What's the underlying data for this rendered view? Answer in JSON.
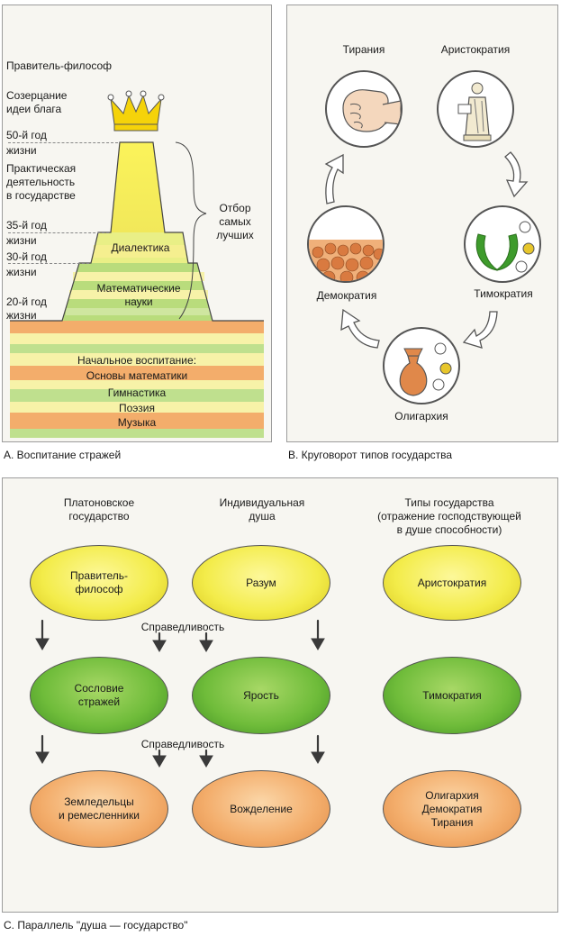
{
  "panel_a": {
    "levels": {
      "ruler": "Правитель-философ",
      "contemplation": "Созерцание\nидеи блага",
      "year50": "50-й год\nжизни",
      "practical": "Практическая\nдеятельность\nв государстве",
      "year35": "35-й год\nжизни",
      "year30": "30-й год\nжизни",
      "year20": "20-й год\nжизни"
    },
    "selection": "Отбор\nсамых\nлучших",
    "steps": {
      "dialectics": "Диалектика",
      "math_sciences": "Математические\nнауки"
    },
    "base_title": "Начальное воспитание:",
    "base_items": [
      "Основы математики",
      "Гимнастика",
      "Поэзия",
      "Музыка"
    ],
    "caption": "А.   Воспитание стражей"
  },
  "panel_b": {
    "states": {
      "tyranny": "Тирания",
      "aristocracy": "Аристократия",
      "timocracy": "Тимократия",
      "oligarchy": "Олигархия",
      "democracy": "Демократия"
    },
    "caption": "В.   Круговорот типов государства"
  },
  "panel_c": {
    "headers": {
      "state": "Платоновское\nгосударство",
      "soul": "Индивидуальная\nдуша",
      "types": "Типы государства\n(отражение господствующей\nв душе способности)"
    },
    "justice": "Справедливость",
    "rows": [
      {
        "state": "Правитель-\nфилософ",
        "soul": "Разум",
        "type": "Аристократия"
      },
      {
        "state": "Сословие\nстражей",
        "soul": "Ярость",
        "type": "Тимократия"
      },
      {
        "state": "Земледельцы\nи ремесленники",
        "soul": "Вожделение",
        "type": "Олигархия\nДемократия\nТирания"
      }
    ],
    "caption": "С.  Параллель \"душа — государство\""
  },
  "colors": {
    "yellow": "#f3ec4a",
    "green": "#6fbc3a",
    "orange": "#f3ad6b",
    "border": "#9c9c9c"
  }
}
